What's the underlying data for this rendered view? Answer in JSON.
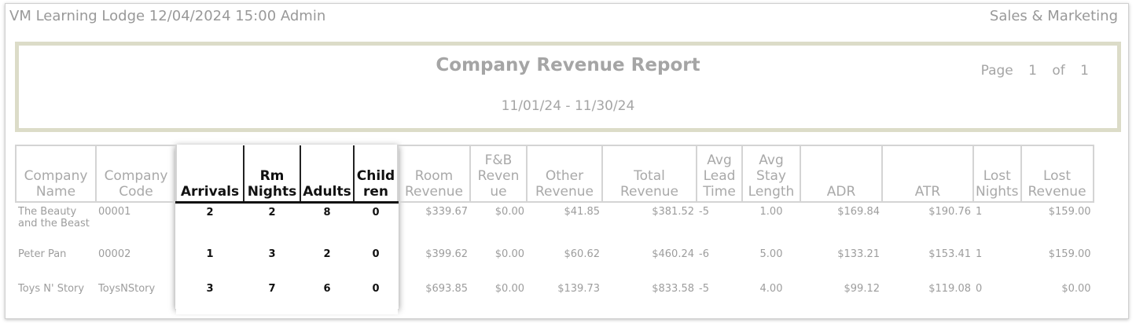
{
  "header": {
    "left": "VM Learning Lodge 12/04/2024 15:00  Admin",
    "right": "Sales & Marketing"
  },
  "report": {
    "title": "Company Revenue Report",
    "date_range": "11/01/24 - 11/30/24",
    "page_label": "Page",
    "page_num": "1",
    "of_label": "of",
    "page_total": "1"
  },
  "columns": [
    "Company Name",
    "Company Code",
    "Arrivals",
    "Rm Nights",
    "Adults",
    "Child ren",
    "Room Revenue",
    "F&B Reven ue",
    "Other Revenue",
    "Total Revenue",
    "Avg Lead Time",
    "Avg Stay Length",
    "ADR",
    "ATR",
    "Lost Nights",
    "Lost Revenue"
  ],
  "rows": [
    [
      "The Beauty and the Beast",
      "00001",
      "2",
      "2",
      "8",
      "0",
      "$339.67",
      "$0.00",
      "$41.85",
      "$381.52",
      "-5",
      "1.00",
      "$169.84",
      "$190.76",
      "1",
      "$159.00"
    ],
    [
      "Peter Pan",
      "00002",
      "1",
      "3",
      "2",
      "0",
      "$399.62",
      "$0.00",
      "$60.62",
      "$460.24",
      "-6",
      "5.00",
      "$133.21",
      "$153.41",
      "1",
      "$159.00"
    ],
    [
      "Toys N' Story",
      "ToysNStory",
      "3",
      "7",
      "6",
      "0",
      "$693.85",
      "$0.00",
      "$139.73",
      "$833.58",
      "-5",
      "4.00",
      "$99.12",
      "$119.08",
      "0",
      "$0.00"
    ]
  ]
}
